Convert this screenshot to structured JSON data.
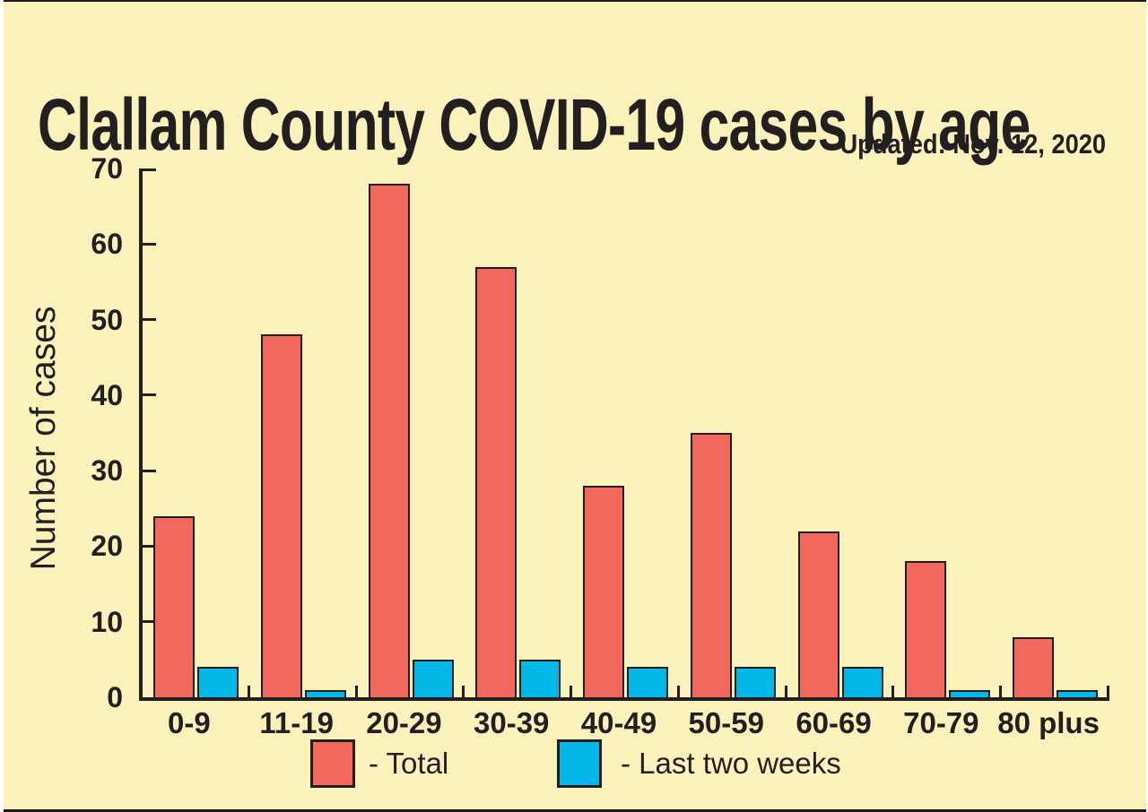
{
  "title": "Clallam County COVID-19 cases by age",
  "updated": "Updated: Nov. 12, 2020",
  "chart_data": {
    "type": "bar",
    "title": "Clallam County COVID-19 cases by age",
    "subtitle": "Updated: Nov. 12, 2020",
    "xlabel": "",
    "ylabel": "Number of cases",
    "categories": [
      "0-9",
      "11-19",
      "20-29",
      "30-39",
      "40-49",
      "50-59",
      "60-69",
      "70-79",
      "80 plus"
    ],
    "series": [
      {
        "name": "Total",
        "color": "#f2685d",
        "values": [
          24,
          48,
          68,
          57,
          28,
          35,
          22,
          18,
          8
        ]
      },
      {
        "name": "Last two weeks",
        "color": "#00b7e8",
        "values": [
          4,
          1,
          5,
          5,
          4,
          4,
          4,
          1,
          1
        ]
      }
    ],
    "ylim": [
      0,
      70
    ],
    "yticks": [
      0,
      10,
      20,
      30,
      40,
      50,
      60,
      70
    ],
    "grid": false,
    "legend_position": "bottom"
  },
  "legend": {
    "total_label": "- Total",
    "last_two_weeks_label": "- Last two weeks"
  },
  "colors": {
    "background": "#fbf2bb",
    "total_bar": "#f2685d",
    "last_two_weeks_bar": "#00b7e8",
    "axis_and_text": "#231f20"
  }
}
